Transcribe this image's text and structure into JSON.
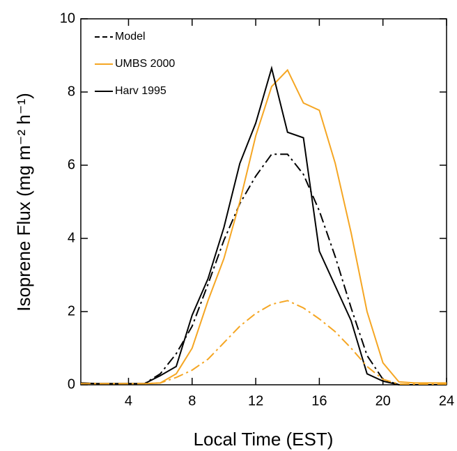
{
  "chart_data": {
    "type": "line",
    "xlabel": "Local Time (EST)",
    "ylabel": "Isoprene Flux (mg m⁻² h⁻¹)",
    "x": [
      1,
      2,
      3,
      4,
      5,
      6,
      7,
      8,
      9,
      10,
      11,
      12,
      13,
      14,
      15,
      16,
      17,
      18,
      19,
      20,
      21,
      22,
      23,
      24
    ],
    "xlim": [
      1,
      24
    ],
    "xticks": [
      4,
      8,
      12,
      16,
      20,
      24
    ],
    "ylim": [
      0,
      10
    ],
    "yticks": [
      0,
      2,
      4,
      6,
      8,
      10
    ],
    "legend": "upper left",
    "series": [
      {
        "name": "Model",
        "color": "#000000",
        "dash": true,
        "values": [
          0.03,
          0.03,
          0.03,
          0.03,
          0.03,
          0.3,
          0.85,
          1.6,
          2.75,
          3.95,
          4.95,
          5.7,
          6.3,
          6.3,
          5.75,
          4.75,
          3.5,
          2.1,
          0.8,
          0.15,
          0,
          0,
          0,
          0
        ]
      },
      {
        "name": "UMBS 2000",
        "color": "#f5a623",
        "dash": false,
        "values": [
          0.05,
          0.03,
          0.03,
          0.03,
          0.03,
          0.05,
          0.3,
          1.0,
          2.3,
          3.45,
          5.0,
          6.8,
          8.15,
          8.6,
          7.7,
          7.5,
          6.05,
          4.15,
          2.0,
          0.6,
          0.08,
          0.05,
          0.05,
          0.05
        ]
      },
      {
        "name": "Harv 1995",
        "color": "#000000",
        "dash": false,
        "values": [
          0.05,
          0.03,
          0.03,
          0.03,
          0.03,
          0.25,
          0.5,
          1.9,
          2.9,
          4.3,
          6.05,
          7.15,
          8.65,
          6.9,
          6.75,
          3.65,
          2.7,
          1.75,
          0.3,
          0.1,
          0,
          0,
          0,
          0
        ]
      },
      {
        "color": "#f5a623",
        "dash": true,
        "values": [
          0.03,
          0.03,
          0.03,
          0.03,
          0.03,
          0.05,
          0.2,
          0.4,
          0.7,
          1.15,
          1.6,
          1.95,
          2.2,
          2.3,
          2.1,
          1.8,
          1.45,
          1.0,
          0.5,
          0.15,
          0.02,
          0.02,
          0.02,
          0.02
        ]
      }
    ]
  }
}
